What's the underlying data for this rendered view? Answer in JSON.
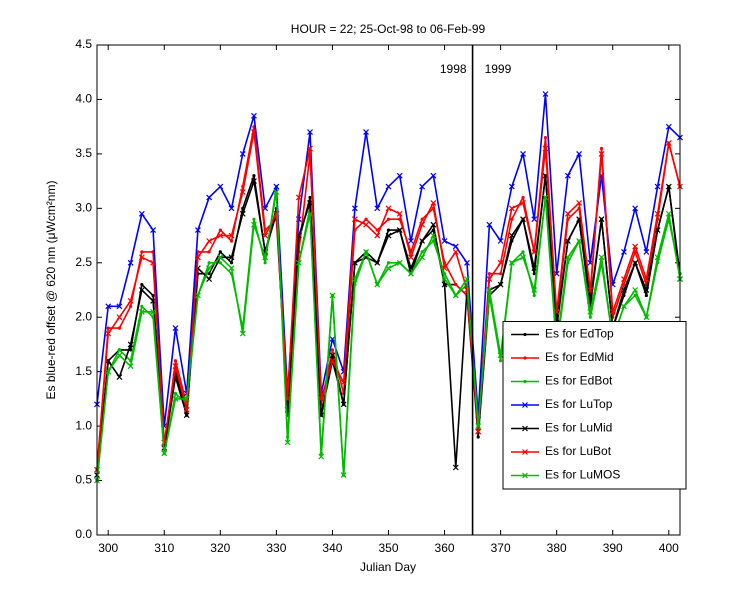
{
  "chart_data": {
    "type": "line",
    "title": "HOUR = 22; 25-Oct-98 to 06-Feb-99",
    "xlabel": "Julian Day",
    "ylabel": "Es blue-red offset @ 620 nm (μWcm²nm)",
    "xlim": [
      298,
      402
    ],
    "ylim": [
      0,
      4.5
    ],
    "xticks": [
      300,
      310,
      320,
      330,
      340,
      350,
      360,
      370,
      380,
      390,
      400
    ],
    "yticks": [
      {
        "value": 0,
        "label": "0.0"
      },
      0.5,
      {
        "value": 1,
        "label": "1.0"
      },
      1.5,
      {
        "value": 2,
        "label": "2.0"
      },
      2.5,
      {
        "value": 3,
        "label": "3.0"
      },
      3.5,
      {
        "value": 4,
        "label": "4.0"
      },
      4.5
    ],
    "vline": {
      "x": 365,
      "left_label": "1998",
      "right_label": "1999"
    },
    "legend": "lower right",
    "x": [
      298,
      300,
      302,
      304,
      306,
      308,
      310,
      312,
      314,
      316,
      318,
      320,
      322,
      324,
      326,
      328,
      330,
      332,
      334,
      336,
      338,
      340,
      342,
      344,
      346,
      348,
      350,
      352,
      354,
      356,
      358,
      360,
      362,
      364,
      366,
      368,
      370,
      372,
      374,
      376,
      378,
      380,
      382,
      384,
      386,
      388,
      390,
      392,
      394,
      396,
      398,
      400,
      402
    ],
    "series": [
      {
        "name": "Es for EdTop",
        "color": "#000000",
        "marker": "dot",
        "values": [
          0.5,
          1.6,
          1.7,
          1.7,
          2.3,
          2.2,
          0.8,
          1.5,
          1.1,
          2.4,
          2.4,
          2.6,
          2.5,
          3.0,
          3.3,
          2.6,
          3.0,
          1.1,
          2.7,
          3.1,
          1.1,
          1.6,
          1.2,
          2.5,
          2.6,
          2.5,
          2.8,
          2.8,
          2.4,
          2.7,
          2.8,
          2.3,
          2.3,
          2.2,
          0.9,
          2.2,
          2.3,
          2.7,
          2.9,
          2.4,
          3.3,
          1.9,
          2.7,
          2.9,
          2.1,
          2.9,
          1.9,
          2.2,
          2.5,
          2.2,
          2.8,
          3.2,
          2.4
        ]
      },
      {
        "name": "Es for EdMid",
        "color": "#ff0000",
        "marker": "dot",
        "values": [
          0.6,
          1.9,
          1.9,
          2.1,
          2.6,
          2.6,
          0.8,
          1.6,
          1.2,
          2.6,
          2.6,
          2.8,
          2.7,
          3.2,
          3.75,
          2.8,
          2.9,
          1.2,
          2.6,
          3.5,
          1.2,
          1.7,
          1.3,
          2.8,
          2.9,
          2.8,
          2.9,
          2.9,
          2.6,
          2.9,
          3.0,
          2.5,
          2.3,
          2.2,
          1.0,
          2.4,
          2.4,
          2.9,
          3.1,
          2.6,
          3.65,
          2.0,
          2.9,
          3.0,
          2.2,
          3.55,
          2.0,
          2.3,
          2.6,
          2.3,
          2.9,
          3.6,
          3.2
        ]
      },
      {
        "name": "Es for EdBot",
        "color": "#00bb00",
        "marker": "dot",
        "values": [
          0.5,
          1.5,
          1.7,
          1.6,
          2.1,
          2.0,
          0.75,
          1.3,
          1.2,
          2.2,
          2.5,
          2.5,
          2.4,
          1.9,
          2.9,
          2.5,
          3.2,
          0.9,
          2.5,
          3.0,
          0.75,
          2.2,
          0.55,
          2.3,
          2.6,
          2.3,
          2.5,
          2.5,
          2.4,
          2.6,
          2.7,
          2.4,
          2.2,
          2.3,
          1.0,
          2.2,
          1.6,
          2.5,
          2.6,
          2.2,
          3.1,
          1.7,
          2.5,
          2.7,
          2.0,
          2.5,
          1.8,
          2.1,
          2.2,
          2.0,
          2.5,
          2.9,
          2.4
        ]
      },
      {
        "name": "Es for LuTop",
        "color": "#0000ff",
        "marker": "x",
        "values": [
          1.2,
          2.1,
          2.1,
          2.5,
          2.95,
          2.8,
          1.0,
          1.9,
          1.3,
          2.8,
          3.1,
          3.2,
          3.0,
          3.5,
          3.85,
          3.0,
          3.2,
          1.3,
          2.9,
          3.7,
          1.3,
          1.8,
          1.5,
          3.0,
          3.7,
          3.0,
          3.2,
          3.3,
          2.7,
          3.2,
          3.3,
          2.7,
          2.65,
          2.5,
          1.1,
          2.85,
          2.7,
          3.2,
          3.5,
          2.9,
          4.05,
          2.4,
          3.3,
          3.5,
          2.5,
          3.3,
          2.3,
          2.6,
          3.0,
          2.6,
          3.2,
          3.75,
          3.65
        ]
      },
      {
        "name": "Es for LuMid",
        "color": "#000000",
        "marker": "x",
        "values": [
          0.55,
          1.6,
          1.45,
          1.75,
          2.25,
          2.15,
          0.8,
          1.45,
          1.1,
          2.45,
          2.35,
          2.55,
          2.55,
          2.95,
          3.25,
          2.6,
          2.95,
          1.15,
          2.75,
          3.05,
          1.1,
          1.65,
          1.2,
          2.5,
          2.55,
          2.5,
          2.75,
          2.8,
          2.45,
          2.7,
          2.85,
          2.3,
          0.62,
          2.25,
          0.95,
          2.25,
          2.3,
          2.75,
          2.9,
          2.45,
          3.3,
          1.95,
          2.7,
          2.9,
          2.15,
          2.9,
          1.9,
          2.25,
          2.5,
          2.25,
          2.8,
          3.2,
          2.35
        ]
      },
      {
        "name": "Es for LuBot",
        "color": "#ff0000",
        "marker": "x",
        "values": [
          0.6,
          1.85,
          2.0,
          2.15,
          2.55,
          2.5,
          0.85,
          1.55,
          1.15,
          2.55,
          2.7,
          2.75,
          2.75,
          3.15,
          3.7,
          2.75,
          2.95,
          1.25,
          3.1,
          3.55,
          1.25,
          1.6,
          1.4,
          2.9,
          2.85,
          2.75,
          3.0,
          2.95,
          2.55,
          2.85,
          3.05,
          2.45,
          2.6,
          2.25,
          0.95,
          2.35,
          2.5,
          3.0,
          3.05,
          2.6,
          3.55,
          2.05,
          2.95,
          3.05,
          2.25,
          3.5,
          2.05,
          2.35,
          2.65,
          2.35,
          2.95,
          3.6,
          3.2
        ]
      },
      {
        "name": "Es for LuMOS",
        "color": "#00bb00",
        "marker": "x",
        "values": [
          0.5,
          1.5,
          1.65,
          1.55,
          2.05,
          2.05,
          0.75,
          1.25,
          1.25,
          2.2,
          2.45,
          2.55,
          2.45,
          1.85,
          2.85,
          2.55,
          3.15,
          0.85,
          2.5,
          2.95,
          0.72,
          2.2,
          0.55,
          2.35,
          2.6,
          2.3,
          2.45,
          2.5,
          2.4,
          2.55,
          2.75,
          2.35,
          2.2,
          2.35,
          1.0,
          2.25,
          1.65,
          2.5,
          2.55,
          2.25,
          3.1,
          1.75,
          2.55,
          2.7,
          2.05,
          2.55,
          1.8,
          2.1,
          2.25,
          2.0,
          2.55,
          2.95,
          2.35
        ]
      }
    ]
  }
}
